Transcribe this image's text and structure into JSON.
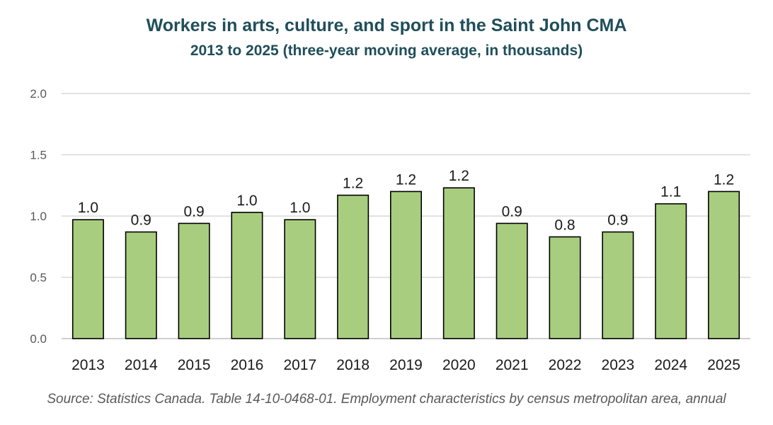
{
  "chart_data": {
    "type": "bar",
    "title": "Workers in arts, culture, and sport in the Saint John CMA",
    "subtitle": "2013 to 2025 (three-year moving average, in thousands)",
    "categories": [
      "2013",
      "2014",
      "2015",
      "2016",
      "2017",
      "2018",
      "2019",
      "2020",
      "2021",
      "2022",
      "2023",
      "2024",
      "2025"
    ],
    "values": [
      0.97,
      0.87,
      0.94,
      1.03,
      0.97,
      1.17,
      1.2,
      1.23,
      0.94,
      0.83,
      0.87,
      1.1,
      1.2
    ],
    "data_labels": [
      "1.0",
      "0.9",
      "0.9",
      "1.0",
      "1.0",
      "1.2",
      "1.2",
      "1.2",
      "0.9",
      "0.8",
      "0.9",
      "1.1",
      "1.2"
    ],
    "y_ticks": [
      "0.0",
      "0.5",
      "1.0",
      "1.5",
      "2.0"
    ],
    "ylim": [
      0,
      2.0
    ],
    "grid": true,
    "legend": "none",
    "bar_color": "#a9cd7f",
    "bar_border_color": "#000000",
    "source": "Source: Statistics Canada. Table 14-10-0468-01. Employment characteristics by census metropolitan area, annual"
  }
}
